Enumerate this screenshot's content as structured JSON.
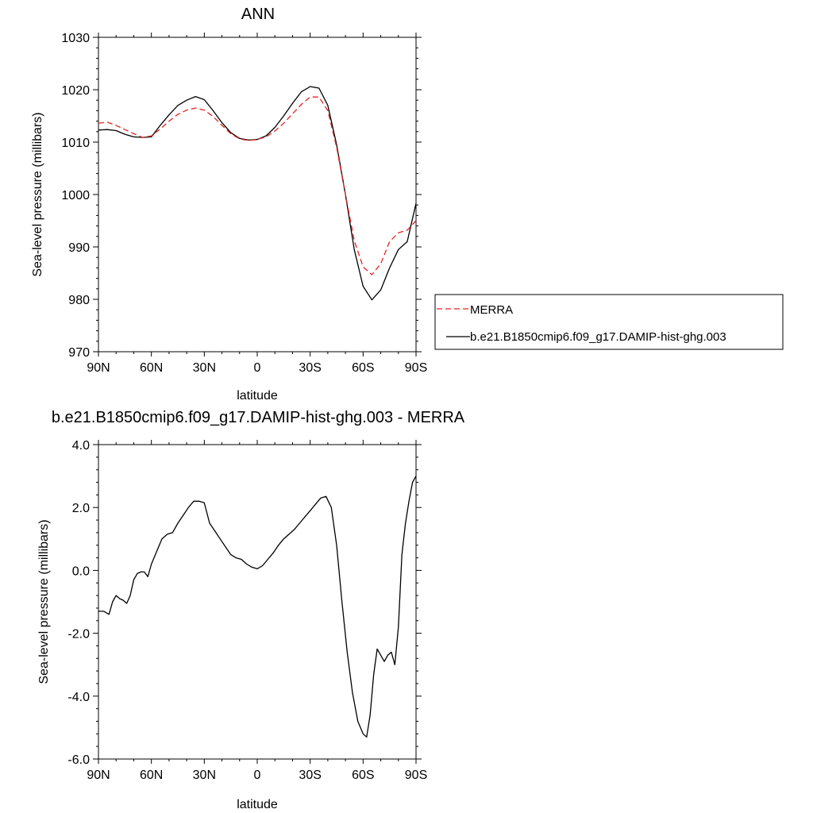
{
  "chart_data": [
    {
      "type": "line",
      "title": "ANN",
      "xlabel": "latitude",
      "ylabel": "Sea-level pressure (millibars)",
      "xlim": [
        90,
        -90
      ],
      "ylim": [
        970,
        1030
      ],
      "x_ticks": [
        90,
        60,
        30,
        0,
        -30,
        -60,
        -90
      ],
      "x_tick_labels": [
        "90N",
        "60N",
        "30N",
        "0",
        "30S",
        "60S",
        "90S"
      ],
      "y_ticks": [
        970,
        980,
        990,
        1000,
        1010,
        1020,
        1030
      ],
      "y_tick_labels": [
        "970",
        "980",
        "990",
        "1000",
        "1010",
        "1020",
        "1030"
      ],
      "legend_position": "right",
      "series": [
        {
          "name": "MERRA",
          "color": "#e8211e",
          "dash": "dashed",
          "x": [
            90,
            85,
            80,
            75,
            70,
            65,
            60,
            55,
            50,
            45,
            40,
            35,
            30,
            25,
            20,
            15,
            10,
            5,
            0,
            -5,
            -10,
            -15,
            -20,
            -25,
            -30,
            -35,
            -40,
            -45,
            -50,
            -55,
            -60,
            -65,
            -70,
            -75,
            -80,
            -85,
            -90
          ],
          "y": [
            1013.6,
            1013.8,
            1013.2,
            1012.4,
            1011.6,
            1010.9,
            1011.2,
            1012.5,
            1014.0,
            1015.3,
            1016.1,
            1016.5,
            1016.1,
            1014.9,
            1013.2,
            1011.6,
            1010.6,
            1010.3,
            1010.5,
            1011.0,
            1012.1,
            1013.6,
            1015.4,
            1017.2,
            1018.6,
            1018.6,
            1016.0,
            1009.0,
            1000.0,
            991.2,
            986.2,
            984.7,
            986.8,
            991.0,
            992.7,
            993.2,
            995.0
          ]
        },
        {
          "name": "b.e21.B1850cmip6.f09_g17.DAMIP-hist-ghg.003",
          "color": "#000000",
          "dash": "solid",
          "x": [
            90,
            85,
            80,
            75,
            70,
            65,
            60,
            55,
            50,
            45,
            40,
            35,
            30,
            25,
            20,
            15,
            10,
            5,
            0,
            -5,
            -10,
            -15,
            -20,
            -25,
            -30,
            -35,
            -40,
            -45,
            -50,
            -55,
            -60,
            -65,
            -70,
            -75,
            -80,
            -85,
            -90
          ],
          "y": [
            1012.3,
            1012.4,
            1012.2,
            1011.5,
            1011.0,
            1010.9,
            1011.0,
            1013.2,
            1015.2,
            1017.0,
            1018.0,
            1018.7,
            1018.1,
            1016.0,
            1013.7,
            1011.8,
            1010.7,
            1010.4,
            1010.5,
            1011.2,
            1012.8,
            1015.0,
            1017.4,
            1019.6,
            1020.6,
            1020.3,
            1017.0,
            1009.5,
            1000.0,
            989.5,
            982.5,
            979.9,
            981.8,
            986.0,
            989.5,
            991.0,
            998.3
          ]
        }
      ]
    },
    {
      "type": "line",
      "title": "b.e21.B1850cmip6.f09_g17.DAMIP-hist-ghg.003 - MERRA",
      "xlabel": "latitude",
      "ylabel": "Sea-level pressure (millibars)",
      "xlim": [
        90,
        -90
      ],
      "ylim": [
        -6,
        4
      ],
      "x_ticks": [
        90,
        60,
        30,
        0,
        -30,
        -60,
        -90
      ],
      "x_tick_labels": [
        "90N",
        "60N",
        "30N",
        "0",
        "30S",
        "60S",
        "90S"
      ],
      "y_ticks": [
        -6,
        -4,
        -2,
        0,
        2,
        4
      ],
      "y_tick_labels": [
        "-6.0",
        "-4.0",
        "-2.0",
        "0.0",
        "2.0",
        "4.0"
      ],
      "series": [
        {
          "color": "#000000",
          "dash": "solid",
          "x": [
            90,
            87,
            84,
            82,
            80,
            78,
            76,
            74,
            72,
            70,
            68,
            66,
            64,
            62,
            60,
            57,
            54,
            51,
            48,
            45,
            42,
            39,
            36,
            33,
            30,
            27,
            24,
            21,
            18,
            15,
            12,
            9,
            6,
            3,
            0,
            -3,
            -6,
            -9,
            -12,
            -15,
            -18,
            -21,
            -24,
            -27,
            -30,
            -33,
            -36,
            -39,
            -42,
            -45,
            -48,
            -51,
            -54,
            -57,
            -60,
            -62,
            -64,
            -66,
            -68,
            -70,
            -72,
            -74,
            -76,
            -78,
            -80,
            -82,
            -84,
            -86,
            -88,
            -90
          ],
          "y": [
            -1.3,
            -1.3,
            -1.4,
            -1.0,
            -0.8,
            -0.9,
            -0.95,
            -1.05,
            -0.8,
            -0.3,
            -0.1,
            -0.05,
            -0.05,
            -0.2,
            0.2,
            0.6,
            1.0,
            1.15,
            1.2,
            1.5,
            1.75,
            2.0,
            2.2,
            2.2,
            2.15,
            1.5,
            1.25,
            1.0,
            0.75,
            0.5,
            0.4,
            0.35,
            0.2,
            0.1,
            0.05,
            0.15,
            0.35,
            0.55,
            0.8,
            1.0,
            1.15,
            1.3,
            1.5,
            1.7,
            1.9,
            2.1,
            2.3,
            2.35,
            2.0,
            0.8,
            -1.0,
            -2.6,
            -3.9,
            -4.8,
            -5.2,
            -5.3,
            -4.6,
            -3.3,
            -2.5,
            -2.7,
            -2.9,
            -2.7,
            -2.6,
            -3.0,
            -1.8,
            0.5,
            1.5,
            2.2,
            2.8,
            3.0
          ]
        }
      ]
    }
  ]
}
